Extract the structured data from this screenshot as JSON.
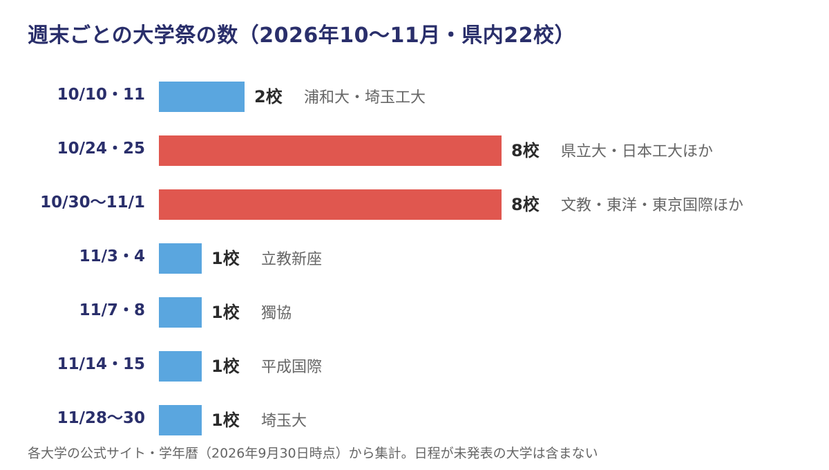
{
  "title": "週末ごとの大学祭の数（2026年10〜11月・県内22校）",
  "footnote": "各大学の公式サイト・学年暦（2026年9月30日時点）から集計。日程が未発表の大学は含まない",
  "colors": {
    "title": "#2a2f6b",
    "category_label": "#2a2f6b",
    "bar_default": "#5aa6df",
    "bar_highlight": "#e0574f",
    "value_label": "#2b2b2b",
    "note": "#666666"
  },
  "chart_data": {
    "type": "bar",
    "orientation": "horizontal",
    "title": "週末ごとの大学祭の数（2026年10〜11月・県内22校）",
    "categories": [
      "10/10・11",
      "10/24・25",
      "10/30〜11/1",
      "11/3・4",
      "11/7・8",
      "11/14・15",
      "11/28〜30"
    ],
    "values": [
      2,
      8,
      8,
      1,
      1,
      1,
      1
    ],
    "value_labels": [
      "2校",
      "8校",
      "8校",
      "1校",
      "1校",
      "1校",
      "1校"
    ],
    "annotations": [
      "浦和大・埼玉工大",
      "県立大・日本工大ほか",
      "文教・東洋・東京国際ほか",
      "立教新座",
      "獨協",
      "平成国際",
      "埼玉大"
    ],
    "highlighted": [
      false,
      true,
      true,
      false,
      false,
      false,
      false
    ],
    "unit": "校",
    "xlim": [
      0,
      8
    ],
    "grid": false,
    "legend": "none"
  }
}
